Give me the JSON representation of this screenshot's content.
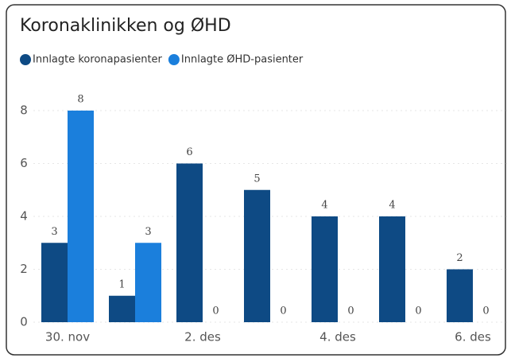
{
  "chart_data": {
    "type": "bar",
    "title": "Koronaklinikken og ØHD",
    "categories": [
      "30. nov",
      null,
      "2. des",
      null,
      "4. des",
      null,
      "6. des"
    ],
    "series": [
      {
        "name": "Innlagte koronapasienter",
        "color": "#0e4a84",
        "values": [
          3,
          1,
          6,
          5,
          4,
          4,
          2
        ]
      },
      {
        "name": "Innlagte ØHD-pasienter",
        "color": "#1b7fdc",
        "values": [
          8,
          3,
          0,
          0,
          0,
          0,
          0
        ]
      }
    ],
    "ylim": [
      0,
      8
    ],
    "yticks": [
      0,
      2,
      4,
      6,
      8
    ],
    "grid": true,
    "legend": "top-left"
  }
}
